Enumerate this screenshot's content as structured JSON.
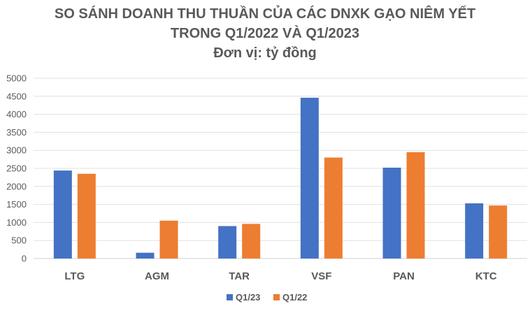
{
  "chart_data": {
    "type": "bar",
    "title_lines": [
      "SO SÁNH DOANH THU THUẦN CỦA CÁC DNXK GẠO NIÊM YẾT",
      "TRONG Q1/2022 VÀ Q1/2023",
      "Đơn vị: tỷ đồng"
    ],
    "categories": [
      "LTG",
      "AGM",
      "TAR",
      "VSF",
      "PAN",
      "KTC"
    ],
    "series": [
      {
        "name": "Q1/23",
        "color": "#4472C4",
        "values": [
          2440,
          160,
          900,
          4460,
          2520,
          1530
        ]
      },
      {
        "name": "Q1/22",
        "color": "#ED7D31",
        "values": [
          2350,
          1050,
          960,
          2800,
          2950,
          1470
        ]
      }
    ],
    "ylim": [
      0,
      5000
    ],
    "yticks": [
      0,
      500,
      1000,
      1500,
      2000,
      2500,
      3000,
      3500,
      4000,
      4500,
      5000
    ],
    "grid": true,
    "legend": "bottom-center",
    "xlabel": "",
    "ylabel": ""
  }
}
